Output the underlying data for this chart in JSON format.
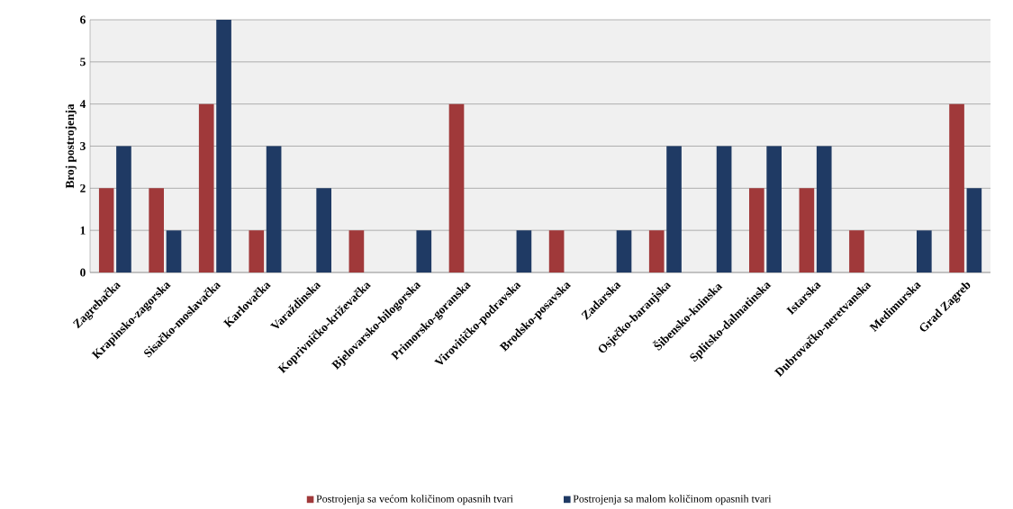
{
  "chart_data": {
    "type": "bar",
    "ylabel": "Broj postrojenja",
    "categories": [
      "Zagrebačka",
      "Krapinsko-zagorska",
      "Sisačko-moslavačka",
      "Karlovačka",
      "Varaždinska",
      "Koprivničko-križevačka",
      "Bjelovarsko-bilogorska",
      "Primorsko-goranska",
      "Virovitičko-podravska",
      "Brodsko-posavska",
      "Zadarska",
      "Osječko-baranjska",
      "Šibensko-kninska",
      "Splitsko-dalmatinska",
      "Istarska",
      "Dubrovačko-neretvanska",
      "Medimurska",
      "Grad Zagreb"
    ],
    "series": [
      {
        "name": "Postrojenja sa većom količinom opasnih tvari",
        "color": "#a0393a",
        "values": [
          2,
          2,
          4,
          1,
          0,
          1,
          0,
          4,
          0,
          1,
          0,
          1,
          0,
          2,
          2,
          1,
          0,
          4
        ]
      },
      {
        "name": "Postrojenja sa malom količinom opasnih tvari",
        "color": "#1f3a64",
        "values": [
          3,
          1,
          6,
          3,
          2,
          0,
          1,
          0,
          1,
          0,
          1,
          3,
          3,
          3,
          3,
          0,
          1,
          2
        ]
      }
    ],
    "ylim": [
      0,
      6
    ],
    "yticks": [
      0,
      1,
      2,
      3,
      4,
      5,
      6
    ],
    "grid": "y",
    "legend": "bottom"
  }
}
